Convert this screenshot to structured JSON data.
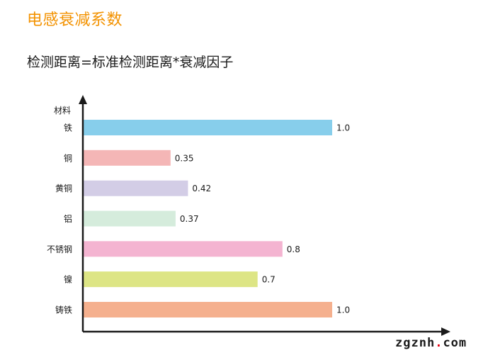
{
  "header": {
    "title": "电感衰减系数",
    "formula": "检测距离=标准检测距离*衰减因子"
  },
  "watermark": {
    "main": "zgznh",
    "dot": ".",
    "tld": "com"
  },
  "colors": {
    "title": "#f39200",
    "axis": "#1a1a1a"
  },
  "chart_data": {
    "type": "bar",
    "orientation": "horizontal",
    "ylabel": "材料",
    "xlabel": "",
    "categories": [
      "铁",
      "铜",
      "黄铜",
      "铝",
      "不锈钢",
      "镍",
      "铸铁"
    ],
    "values": [
      1.0,
      0.35,
      0.42,
      0.37,
      0.8,
      0.7,
      1.0
    ],
    "value_labels": [
      "1.0",
      "0.35",
      "0.42",
      "0.37",
      "0.8",
      "0.7",
      "1.0"
    ],
    "bar_colors": [
      "#87ceeb",
      "#f4b6b6",
      "#d3cde6",
      "#d5ecdc",
      "#f4b4d1",
      "#dde585",
      "#f5b08e"
    ],
    "xlim": [
      0,
      1.0
    ],
    "grid": false,
    "legend": "none"
  }
}
